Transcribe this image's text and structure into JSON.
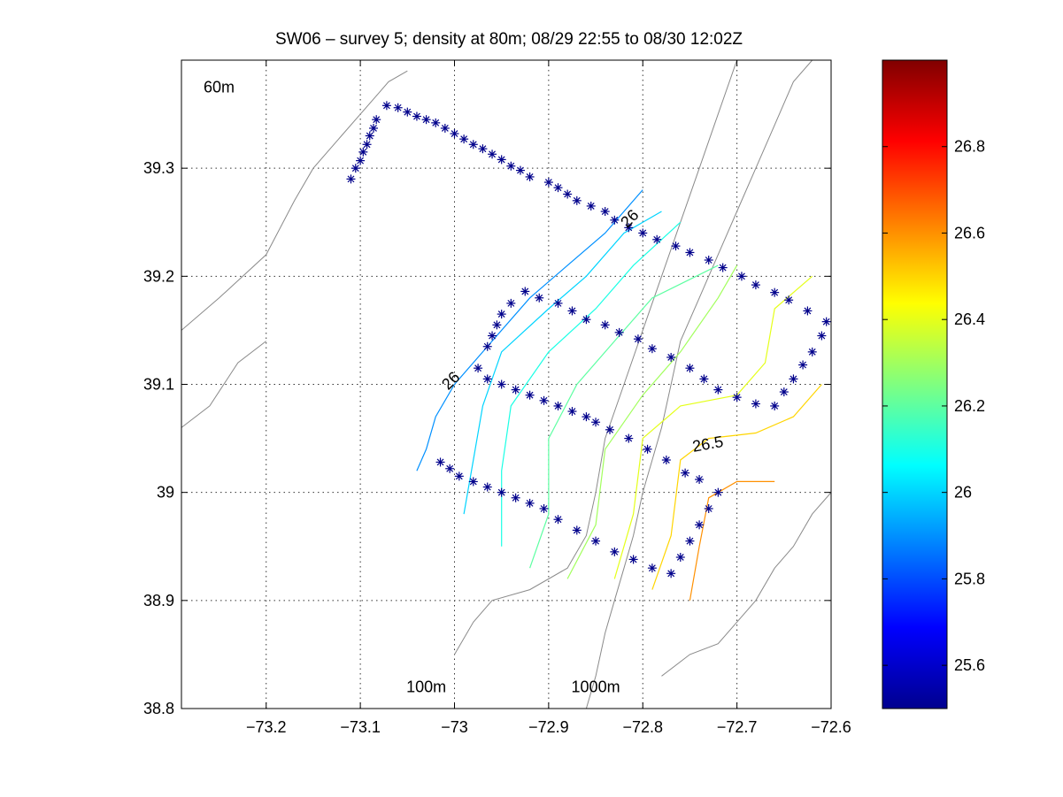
{
  "chart_data": {
    "type": "scatter",
    "title": "SW06 – survey 5; density at 80m; 08/29 22:55 to 08/30 12:02Z",
    "xlabel": "",
    "ylabel": "",
    "xlim": [
      -73.29,
      -72.6
    ],
    "ylim": [
      38.8,
      39.4
    ],
    "xticks": [
      -73.2,
      -73.1,
      -73.0,
      -72.9,
      -72.8,
      -72.7,
      -72.6
    ],
    "xtick_labels": [
      "−73.2",
      "−73.1",
      "−73",
      "−72.9",
      "−72.8",
      "−72.7",
      "−72.6"
    ],
    "yticks": [
      38.8,
      38.9,
      39.0,
      39.1,
      39.2,
      39.3
    ],
    "ytick_labels": [
      "38.8",
      "38.9",
      "39",
      "39.1",
      "39.2",
      "39.3"
    ],
    "grid": true,
    "isobath_labels": [
      {
        "text": "60m",
        "x": -73.25,
        "y": 39.37
      },
      {
        "text": "100m",
        "x": -73.03,
        "y": 38.815
      },
      {
        "text": "1000m",
        "x": -72.85,
        "y": 38.815
      }
    ],
    "colorbar": {
      "range": [
        25.5,
        27.0
      ],
      "ticks": [
        25.6,
        25.8,
        26.0,
        26.2,
        26.4,
        26.6,
        26.8
      ],
      "tick_labels": [
        "25.6",
        "25.8",
        "26",
        "26.2",
        "26.4",
        "26.6",
        "26.8"
      ],
      "colormap": "jet"
    },
    "stations": [
      [
        -73.11,
        39.29
      ],
      [
        -73.105,
        39.3
      ],
      [
        -73.1,
        39.307
      ],
      [
        -73.097,
        39.315
      ],
      [
        -73.093,
        39.322
      ],
      [
        -73.09,
        39.33
      ],
      [
        -73.086,
        39.337
      ],
      [
        -73.083,
        39.345
      ],
      [
        -73.072,
        39.358
      ],
      [
        -73.06,
        39.356
      ],
      [
        -73.05,
        39.352
      ],
      [
        -73.04,
        39.348
      ],
      [
        -73.03,
        39.345
      ],
      [
        -73.02,
        39.342
      ],
      [
        -73.01,
        39.337
      ],
      [
        -73.0,
        39.332
      ],
      [
        -72.99,
        39.327
      ],
      [
        -72.98,
        39.322
      ],
      [
        -72.97,
        39.318
      ],
      [
        -72.96,
        39.313
      ],
      [
        -72.95,
        39.308
      ],
      [
        -72.94,
        39.302
      ],
      [
        -72.93,
        39.298
      ],
      [
        -72.92,
        39.292
      ],
      [
        -72.9,
        39.287
      ],
      [
        -72.89,
        39.282
      ],
      [
        -72.88,
        39.276
      ],
      [
        -72.87,
        39.27
      ],
      [
        -72.855,
        39.265
      ],
      [
        -72.84,
        39.26
      ],
      [
        -72.83,
        39.252
      ],
      [
        -72.815,
        39.245
      ],
      [
        -72.8,
        39.24
      ],
      [
        -72.785,
        39.234
      ],
      [
        -72.765,
        39.228
      ],
      [
        -72.75,
        39.222
      ],
      [
        -72.73,
        39.215
      ],
      [
        -72.715,
        39.208
      ],
      [
        -72.695,
        39.2
      ],
      [
        -72.68,
        39.192
      ],
      [
        -72.66,
        39.185
      ],
      [
        -72.645,
        39.178
      ],
      [
        -72.625,
        39.168
      ],
      [
        -72.605,
        39.158
      ],
      [
        -72.61,
        39.145
      ],
      [
        -72.62,
        39.13
      ],
      [
        -72.63,
        39.118
      ],
      [
        -72.64,
        39.105
      ],
      [
        -72.65,
        39.093
      ],
      [
        -72.66,
        39.08
      ],
      [
        -72.68,
        39.082
      ],
      [
        -72.7,
        39.088
      ],
      [
        -72.72,
        39.095
      ],
      [
        -72.735,
        39.105
      ],
      [
        -72.75,
        39.115
      ],
      [
        -72.77,
        39.125
      ],
      [
        -72.79,
        39.133
      ],
      [
        -72.805,
        39.142
      ],
      [
        -72.825,
        39.148
      ],
      [
        -72.84,
        39.155
      ],
      [
        -72.86,
        39.16
      ],
      [
        -72.875,
        39.168
      ],
      [
        -72.89,
        39.175
      ],
      [
        -72.91,
        39.18
      ],
      [
        -72.925,
        39.186
      ],
      [
        -72.94,
        39.175
      ],
      [
        -72.95,
        39.165
      ],
      [
        -72.955,
        39.155
      ],
      [
        -72.96,
        39.145
      ],
      [
        -72.965,
        39.135
      ],
      [
        -72.975,
        39.115
      ],
      [
        -72.965,
        39.105
      ],
      [
        -72.95,
        39.1
      ],
      [
        -72.935,
        39.095
      ],
      [
        -72.92,
        39.09
      ],
      [
        -72.905,
        39.085
      ],
      [
        -72.89,
        39.08
      ],
      [
        -72.875,
        39.075
      ],
      [
        -72.86,
        39.07
      ],
      [
        -72.85,
        39.065
      ],
      [
        -72.835,
        39.058
      ],
      [
        -72.815,
        39.05
      ],
      [
        -72.795,
        39.04
      ],
      [
        -72.775,
        39.03
      ],
      [
        -72.755,
        39.018
      ],
      [
        -72.74,
        39.012
      ],
      [
        -72.72,
        39.0
      ],
      [
        -72.73,
        38.985
      ],
      [
        -72.74,
        38.97
      ],
      [
        -72.75,
        38.955
      ],
      [
        -72.76,
        38.94
      ],
      [
        -72.77,
        38.925
      ],
      [
        -72.79,
        38.93
      ],
      [
        -72.81,
        38.938
      ],
      [
        -72.83,
        38.945
      ],
      [
        -72.85,
        38.955
      ],
      [
        -72.87,
        38.965
      ],
      [
        -72.89,
        38.975
      ],
      [
        -72.905,
        38.985
      ],
      [
        -72.92,
        38.99
      ],
      [
        -72.935,
        38.995
      ],
      [
        -72.95,
        39.0
      ],
      [
        -72.965,
        39.005
      ],
      [
        -72.98,
        39.01
      ],
      [
        -72.995,
        39.015
      ],
      [
        -73.005,
        39.022
      ],
      [
        -73.015,
        39.028
      ]
    ],
    "density_contours": [
      {
        "level": 25.9,
        "points": [
          [
            -73.04,
            39.02
          ],
          [
            -73.03,
            39.04
          ],
          [
            -73.02,
            39.07
          ],
          [
            -73.0,
            39.1
          ],
          [
            -72.96,
            39.14
          ],
          [
            -72.92,
            39.18
          ],
          [
            -72.88,
            39.21
          ],
          [
            -72.84,
            39.24
          ],
          [
            -72.8,
            39.28
          ]
        ]
      },
      {
        "level": 26.0,
        "points": [
          [
            -72.99,
            38.98
          ],
          [
            -72.98,
            39.03
          ],
          [
            -72.97,
            39.08
          ],
          [
            -72.95,
            39.13
          ],
          [
            -72.9,
            39.17
          ],
          [
            -72.86,
            39.2
          ],
          [
            -72.82,
            39.24
          ],
          [
            -72.78,
            39.26
          ]
        ]
      },
      {
        "level": 26.1,
        "points": [
          [
            -72.95,
            38.95
          ],
          [
            -72.95,
            39.02
          ],
          [
            -72.94,
            39.08
          ],
          [
            -72.9,
            39.13
          ],
          [
            -72.85,
            39.17
          ],
          [
            -72.81,
            39.21
          ],
          [
            -72.76,
            39.25
          ]
        ]
      },
      {
        "level": 26.2,
        "points": [
          [
            -72.92,
            38.93
          ],
          [
            -72.9,
            38.98
          ],
          [
            -72.9,
            39.05
          ],
          [
            -72.87,
            39.1
          ],
          [
            -72.83,
            39.14
          ],
          [
            -72.79,
            39.18
          ],
          [
            -72.72,
            39.21
          ]
        ]
      },
      {
        "level": 26.3,
        "points": [
          [
            -72.88,
            38.92
          ],
          [
            -72.85,
            38.97
          ],
          [
            -72.84,
            39.04
          ],
          [
            -72.8,
            39.09
          ],
          [
            -72.76,
            39.13
          ],
          [
            -72.72,
            39.18
          ],
          [
            -72.7,
            39.21
          ]
        ]
      },
      {
        "level": 26.4,
        "points": [
          [
            -72.83,
            38.92
          ],
          [
            -72.81,
            38.98
          ],
          [
            -72.8,
            39.05
          ],
          [
            -72.76,
            39.08
          ],
          [
            -72.7,
            39.09
          ],
          [
            -72.67,
            39.12
          ],
          [
            -72.66,
            39.17
          ],
          [
            -72.62,
            39.2
          ]
        ]
      },
      {
        "level": 26.5,
        "points": [
          [
            -72.79,
            38.91
          ],
          [
            -72.77,
            38.96
          ],
          [
            -72.76,
            39.03
          ],
          [
            -72.73,
            39.05
          ],
          [
            -72.68,
            39.055
          ],
          [
            -72.64,
            39.07
          ],
          [
            -72.61,
            39.1
          ]
        ]
      },
      {
        "level": 26.6,
        "points": [
          [
            -72.75,
            38.9
          ],
          [
            -72.74,
            38.95
          ],
          [
            -72.73,
            38.995
          ],
          [
            -72.7,
            39.01
          ],
          [
            -72.66,
            39.01
          ]
        ]
      }
    ],
    "contour_labels": [
      {
        "text": "26",
        "x": -73.0,
        "y": 39.1,
        "rotation": -45
      },
      {
        "text": "26",
        "x": -72.81,
        "y": 39.25,
        "rotation": -45
      },
      {
        "text": "26.5",
        "x": -72.73,
        "y": 39.04,
        "rotation": -10
      }
    ],
    "bathymetry": [
      [
        [
          -72.86,
          38.8
        ],
        [
          -72.85,
          38.83
        ],
        [
          -72.84,
          38.87
        ],
        [
          -72.83,
          38.9
        ],
        [
          -72.82,
          38.93
        ],
        [
          -72.81,
          38.96
        ],
        [
          -72.8,
          39.0
        ],
        [
          -72.79,
          39.03
        ],
        [
          -72.78,
          39.06
        ],
        [
          -72.77,
          39.1
        ],
        [
          -72.76,
          39.14
        ],
        [
          -72.74,
          39.18
        ],
        [
          -72.72,
          39.22
        ],
        [
          -72.7,
          39.26
        ],
        [
          -72.68,
          39.3
        ],
        [
          -72.66,
          39.34
        ],
        [
          -72.64,
          39.38
        ],
        [
          -72.62,
          39.4
        ]
      ],
      [
        [
          -73.0,
          38.85
        ],
        [
          -72.98,
          38.88
        ],
        [
          -72.96,
          38.9
        ],
        [
          -72.92,
          38.91
        ],
        [
          -72.88,
          38.93
        ],
        [
          -72.86,
          38.96
        ],
        [
          -72.85,
          39.0
        ],
        [
          -72.84,
          39.05
        ],
        [
          -72.82,
          39.1
        ],
        [
          -72.8,
          39.15
        ],
        [
          -72.78,
          39.2
        ],
        [
          -72.76,
          39.25
        ],
        [
          -72.74,
          39.3
        ],
        [
          -72.72,
          39.35
        ],
        [
          -72.7,
          39.4
        ]
      ],
      [
        [
          -72.78,
          38.83
        ],
        [
          -72.75,
          38.85
        ],
        [
          -72.72,
          38.86
        ],
        [
          -72.7,
          38.88
        ],
        [
          -72.68,
          38.9
        ],
        [
          -72.66,
          38.93
        ],
        [
          -72.64,
          38.95
        ],
        [
          -72.62,
          38.98
        ],
        [
          -72.6,
          39.0
        ]
      ],
      [
        [
          -73.29,
          39.15
        ],
        [
          -73.25,
          39.18
        ],
        [
          -73.2,
          39.22
        ],
        [
          -73.17,
          39.27
        ],
        [
          -73.15,
          39.3
        ],
        [
          -73.12,
          39.33
        ],
        [
          -73.1,
          39.35
        ],
        [
          -73.08,
          39.37
        ],
        [
          -73.07,
          39.38
        ],
        [
          -73.05,
          39.39
        ]
      ],
      [
        [
          -73.29,
          39.06
        ],
        [
          -73.26,
          39.08
        ],
        [
          -73.23,
          39.12
        ],
        [
          -73.2,
          39.14
        ]
      ]
    ]
  }
}
